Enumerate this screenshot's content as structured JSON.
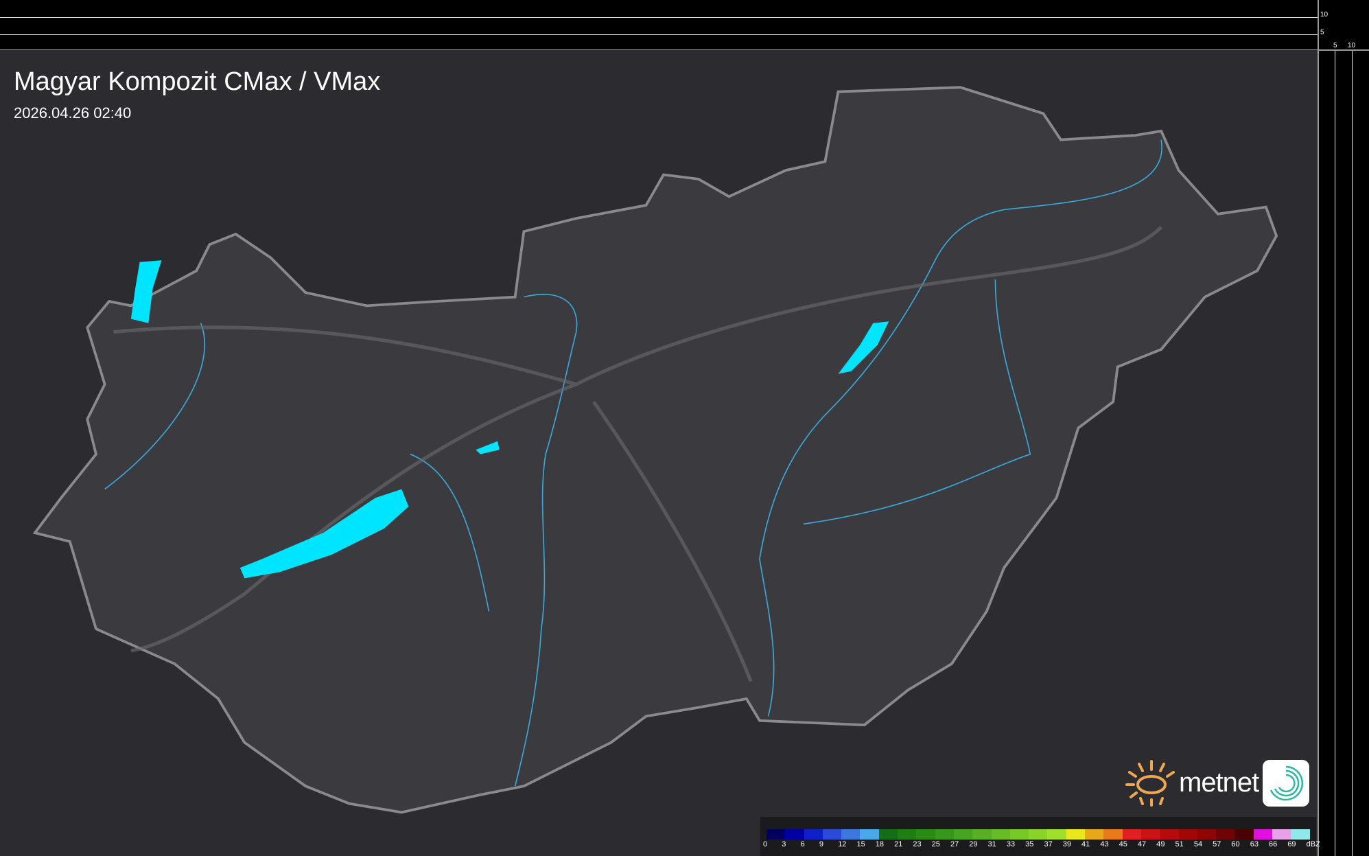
{
  "header": {
    "title": "Magyar Kompozit CMax / VMax",
    "timestamp": "2026.04.26 02:40"
  },
  "scale_ticks": {
    "vertical": [
      "10",
      "5"
    ],
    "horizontal": [
      "5",
      "10"
    ]
  },
  "brand": {
    "name": "metnet",
    "icons": [
      "sun-logo-icon",
      "swirl-app-icon"
    ]
  },
  "legend": {
    "unit": "dBZ",
    "labels": [
      "0",
      "3",
      "6",
      "9",
      "12",
      "15",
      "18",
      "21",
      "23",
      "25",
      "27",
      "29",
      "31",
      "33",
      "35",
      "37",
      "39",
      "41",
      "43",
      "45",
      "47",
      "49",
      "51",
      "54",
      "57",
      "60",
      "63",
      "66",
      "69"
    ],
    "colors": [
      "#00005e",
      "#0000a0",
      "#1020c8",
      "#2a4ad8",
      "#3a78e0",
      "#48a8ea",
      "#146e14",
      "#1e7e10",
      "#288c14",
      "#36981a",
      "#46a41e",
      "#56b022",
      "#66bc24",
      "#78c826",
      "#8ad42a",
      "#9ee02c",
      "#e8e81a",
      "#e8a81a",
      "#e87a1a",
      "#e02020",
      "#c81414",
      "#b40c0c",
      "#a00808",
      "#8c0606",
      "#700404",
      "#4a0202",
      "#e010e0",
      "#e8a0e8",
      "#90e8e8"
    ]
  },
  "colors": {
    "background": "#2a2a2d",
    "border": "#888888",
    "river": "#3aa8d8",
    "lake": "#00e5ff"
  }
}
